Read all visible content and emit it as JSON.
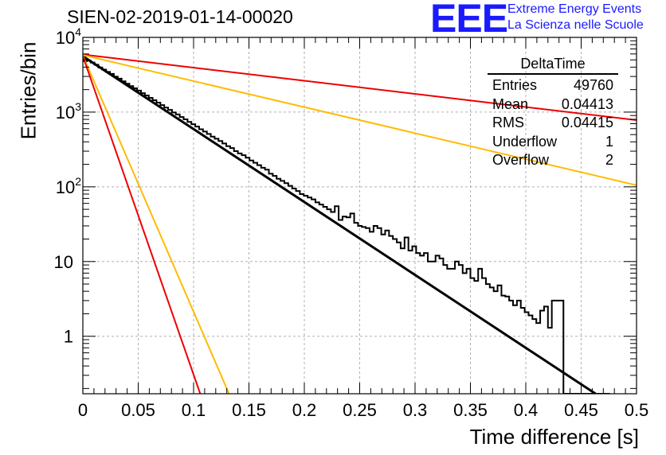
{
  "header": {
    "title": "SIEN-02-2019-01-14-00020",
    "logo_letters": "EEE",
    "logo_line1": "Extreme Energy Events",
    "logo_line2": "La Scienza nelle Scuole"
  },
  "stats_box": {
    "title": "DeltaTime",
    "rows": [
      {
        "label": "Entries",
        "value": "49760"
      },
      {
        "label": "Mean",
        "value": "0.04413"
      },
      {
        "label": "RMS",
        "value": "0.04415"
      },
      {
        "label": "Underflow",
        "value": "1"
      },
      {
        "label": "Overflow",
        "value": "2"
      }
    ]
  },
  "chart_data": {
    "type": "line",
    "title": "SIEN-02-2019-01-14-00020",
    "xlabel": "Time difference [s]",
    "ylabel": "Entries/bin",
    "x_scale": "linear",
    "y_scale": "log",
    "xlim": [
      0,
      0.5
    ],
    "ylim": [
      0.17,
      10000
    ],
    "grid": true,
    "x_ticks": [
      "0",
      "0.05",
      "0.1",
      "0.15",
      "0.2",
      "0.25",
      "0.3",
      "0.35",
      "0.4",
      "0.45",
      "0.5"
    ],
    "y_ticks": [
      {
        "value": 1,
        "label": "1"
      },
      {
        "value": 10,
        "label": "10"
      },
      {
        "value": 100,
        "label": "10",
        "exp": "2"
      },
      {
        "value": 1000,
        "label": "10",
        "exp": "3"
      },
      {
        "value": 10000,
        "label": "10",
        "exp": "4"
      }
    ],
    "histogram": {
      "name": "DeltaTime",
      "bin_width": 0.0035,
      "color": "#000000",
      "values": [
        4800,
        4900,
        4600,
        4300,
        3950,
        3700,
        3450,
        3250,
        2980,
        2800,
        2580,
        2400,
        2230,
        2080,
        1940,
        1790,
        1670,
        1550,
        1440,
        1340,
        1240,
        1150,
        1070,
        990,
        930,
        860,
        800,
        740,
        690,
        640,
        590,
        550,
        510,
        470,
        440,
        410,
        380,
        350,
        330,
        300,
        280,
        265,
        245,
        225,
        210,
        195,
        180,
        170,
        150,
        140,
        128,
        120,
        112,
        103,
        95,
        88,
        80,
        76,
        72,
        68,
        62,
        58,
        54,
        50,
        46,
        55,
        36,
        40,
        39,
        44,
        33,
        30,
        29,
        28,
        25,
        30,
        28,
        23,
        26,
        22,
        20,
        18,
        15,
        21,
        14,
        16,
        13,
        12,
        13,
        10,
        10,
        12,
        11,
        9,
        8,
        8,
        10,
        9,
        7,
        8,
        6,
        5.5,
        8,
        6,
        5,
        4.5,
        4,
        4.8,
        3.5,
        3.4,
        3,
        2.6,
        3,
        2.4,
        2.1,
        1.9,
        1.7,
        1.5,
        2.2,
        2.5,
        1.3,
        3,
        3,
        3,
        0.15,
        0.15,
        0.15,
        0.15,
        0.15,
        0.15,
        0.15,
        0.15,
        0.15,
        0.15,
        0.15,
        0.15
      ]
    },
    "lines": [
      {
        "kind": "fit",
        "color": "#000000",
        "width": 3,
        "x": [
          0,
          0.463
        ],
        "y": [
          5600,
          0.16
        ]
      },
      {
        "kind": "reference",
        "color": "#ee0000",
        "width": 2,
        "x": [
          0,
          0.5
        ],
        "y": [
          5900,
          780
        ]
      },
      {
        "kind": "reference",
        "color": "#ffbb00",
        "width": 2,
        "x": [
          0,
          0.5
        ],
        "y": [
          5800,
          105
        ]
      },
      {
        "kind": "reference",
        "color": "#ffbb00",
        "width": 2,
        "x": [
          0,
          0.132
        ],
        "y": [
          5700,
          0.16
        ]
      },
      {
        "kind": "reference",
        "color": "#ee0000",
        "width": 2,
        "x": [
          0,
          0.106
        ],
        "y": [
          5600,
          0.16
        ]
      }
    ]
  }
}
